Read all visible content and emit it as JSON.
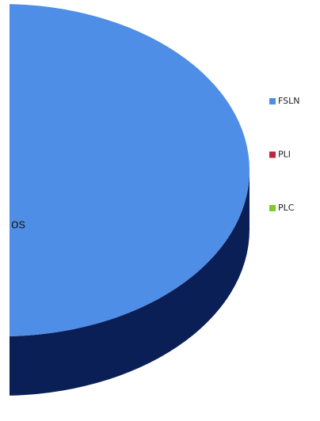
{
  "chart_data": {
    "type": "pie",
    "label": "os",
    "categories": [
      "FSLN",
      "PLI",
      "PLC"
    ],
    "values": [
      100,
      0,
      0
    ],
    "colors": [
      "#4f8ee6",
      "#c0243c",
      "#7ccc2c"
    ],
    "legend": "right"
  }
}
